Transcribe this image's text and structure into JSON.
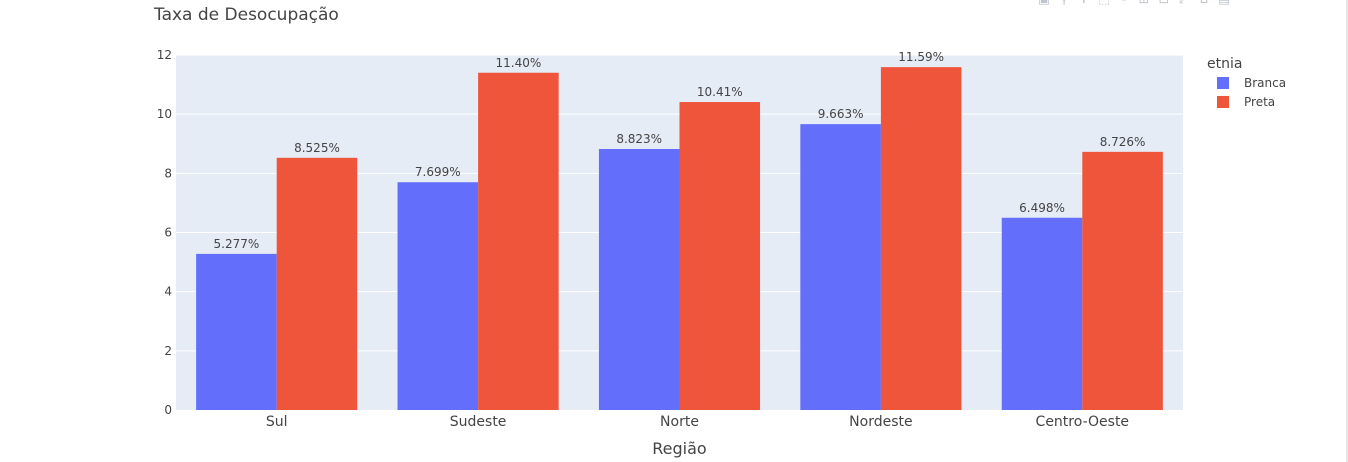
{
  "chart_data": {
    "type": "bar",
    "title": "Taxa de Desocupação",
    "xlabel": "Região",
    "ylabel": "",
    "categories": [
      "Sul",
      "Sudeste",
      "Norte",
      "Nordeste",
      "Centro-Oeste"
    ],
    "ylim": [
      0,
      12
    ],
    "yticks": [
      "0",
      "2",
      "4",
      "6",
      "8",
      "10",
      "12"
    ],
    "grid": true,
    "legend_title": "etnia",
    "legend_position": "top-right",
    "series": [
      {
        "name": "Branca",
        "color": "#636efa",
        "values": [
          5.277,
          7.699,
          8.823,
          9.663,
          6.498
        ],
        "labels": [
          "5.277%",
          "7.699%",
          "8.823%",
          "9.663%",
          "6.498%"
        ]
      },
      {
        "name": "Preta",
        "color": "#ef553b",
        "values": [
          8.525,
          11.4,
          10.41,
          11.59,
          8.726
        ],
        "labels": [
          "8.525%",
          "11.40%",
          "10.41%",
          "11.59%",
          "8.726%"
        ]
      }
    ],
    "plot_bg": "#e5ecf6"
  },
  "modebar": {
    "icons": [
      "camera-icon",
      "zoom-icon",
      "pan-icon",
      "box-select-icon",
      "lasso-icon",
      "zoom-in-icon",
      "zoom-out-icon",
      "autoscale-icon",
      "home-icon",
      "plotly-logo-icon"
    ]
  }
}
